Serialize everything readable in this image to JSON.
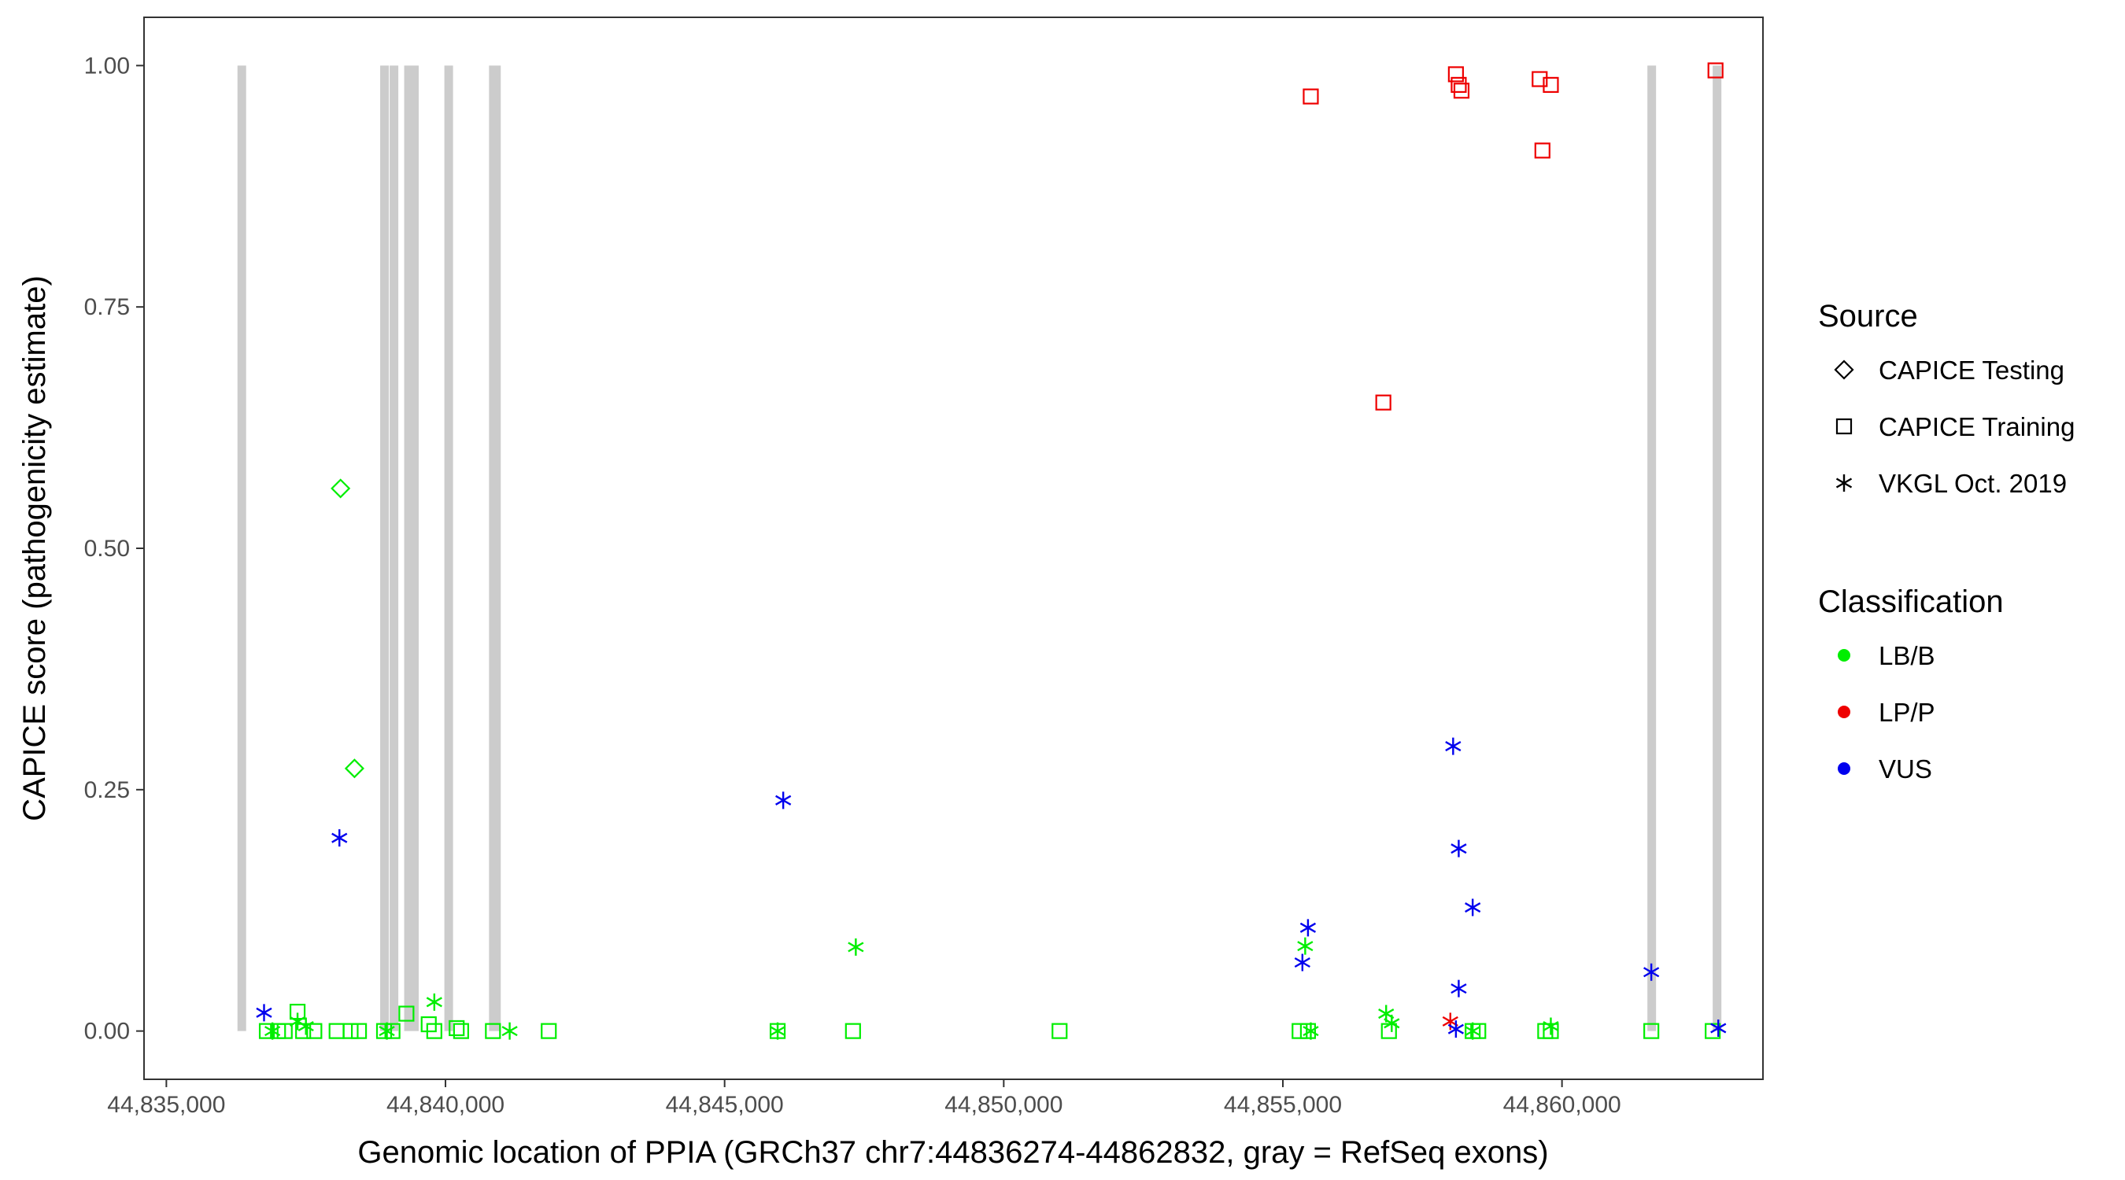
{
  "chart_data": {
    "type": "scatter",
    "title": "",
    "xlabel": "Genomic location of PPIA (GRCh37 chr7:44836274-44862832, gray = RefSeq exons)",
    "ylabel": "CAPICE score (pathogenicity estimate)",
    "xlim": [
      44834600,
      44863600
    ],
    "ylim": [
      -0.05,
      1.05
    ],
    "x_ticks": [
      44835000,
      44840000,
      44845000,
      44850000,
      44855000,
      44860000
    ],
    "x_tick_labels": [
      "44,835,000",
      "44,840,000",
      "44,845,000",
      "44,850,000",
      "44,855,000",
      "44,860,000"
    ],
    "y_ticks": [
      0,
      0.25,
      0.5,
      0.75,
      1.0
    ],
    "y_tick_labels": [
      "0.00",
      "0.25",
      "0.50",
      "0.75",
      "1.00"
    ],
    "grid": false,
    "exons": [
      [
        44836274,
        44836420
      ],
      [
        44838830,
        44838960
      ],
      [
        44839000,
        44839100
      ],
      [
        44839260,
        44839520
      ],
      [
        44839980,
        44840070
      ],
      [
        44840780,
        44840990
      ],
      [
        44861530,
        44861650
      ],
      [
        44862700,
        44862832
      ]
    ],
    "colors": {
      "LB/B": "#00ee00",
      "LP/P": "#ee0000",
      "VUS": "#0000ee",
      "exon": "#cccccc"
    },
    "legend": {
      "position": "right",
      "source_title": "Source",
      "source_items": [
        {
          "label": "CAPICE Testing",
          "shape": "diamond"
        },
        {
          "label": "CAPICE Training",
          "shape": "square"
        },
        {
          "label": "VKGL Oct. 2019",
          "shape": "asterisk"
        }
      ],
      "classification_title": "Classification",
      "classification_items": [
        {
          "label": "LB/B",
          "color": "#00ee00"
        },
        {
          "label": "LP/P",
          "color": "#ee0000"
        },
        {
          "label": "VUS",
          "color": "#0000ee"
        }
      ]
    },
    "series": [
      {
        "source": "CAPICE Testing",
        "classification": "LB/B",
        "points": [
          [
            44838120,
            0.562
          ],
          [
            44838370,
            0.272
          ]
        ]
      },
      {
        "source": "CAPICE Training",
        "classification": "LB/B",
        "points": [
          [
            44836800,
            0
          ],
          [
            44837000,
            0
          ],
          [
            44837120,
            0
          ],
          [
            44837350,
            0.02
          ],
          [
            44837450,
            0
          ],
          [
            44837650,
            0
          ],
          [
            44838050,
            0
          ],
          [
            44838300,
            0
          ],
          [
            44838450,
            0
          ],
          [
            44838900,
            0
          ],
          [
            44839050,
            0
          ],
          [
            44839300,
            0.018
          ],
          [
            44839700,
            0.007
          ],
          [
            44839800,
            0
          ],
          [
            44840200,
            0.003
          ],
          [
            44840280,
            0
          ],
          [
            44840850,
            0
          ],
          [
            44841850,
            0
          ],
          [
            44845950,
            0
          ],
          [
            44847300,
            0
          ],
          [
            44851000,
            0
          ],
          [
            44855300,
            0
          ],
          [
            44855450,
            0
          ],
          [
            44856900,
            0
          ],
          [
            44858400,
            0
          ],
          [
            44858500,
            0
          ],
          [
            44859700,
            0
          ],
          [
            44859800,
            0
          ],
          [
            44861600,
            0
          ],
          [
            44862700,
            0
          ]
        ]
      },
      {
        "source": "VKGL Oct. 2019",
        "classification": "LB/B",
        "points": [
          [
            44836900,
            0
          ],
          [
            44837350,
            0.01
          ],
          [
            44837500,
            0.005
          ],
          [
            44838950,
            0
          ],
          [
            44839800,
            0.03
          ],
          [
            44841150,
            0
          ],
          [
            44845950,
            0
          ],
          [
            44847350,
            0.087
          ],
          [
            44855400,
            0.088
          ],
          [
            44855500,
            0
          ],
          [
            44856850,
            0.018
          ],
          [
            44856950,
            0.008
          ],
          [
            44858400,
            0
          ],
          [
            44859800,
            0.005
          ]
        ]
      },
      {
        "source": "CAPICE Training",
        "classification": "LP/P",
        "points": [
          [
            44855500,
            0.968
          ],
          [
            44856800,
            0.651
          ],
          [
            44858100,
            0.991
          ],
          [
            44858150,
            0.98
          ],
          [
            44858200,
            0.974
          ],
          [
            44859600,
            0.986
          ],
          [
            44859800,
            0.98
          ],
          [
            44859650,
            0.912
          ],
          [
            44862750,
            0.995
          ]
        ]
      },
      {
        "source": "VKGL Oct. 2019",
        "classification": "LP/P",
        "points": [
          [
            44858000,
            0.01
          ]
        ]
      },
      {
        "source": "VKGL Oct. 2019",
        "classification": "VUS",
        "points": [
          [
            44836750,
            0.019
          ],
          [
            44838100,
            0.2
          ],
          [
            44846050,
            0.239
          ],
          [
            44855350,
            0.071
          ],
          [
            44855450,
            0.107
          ],
          [
            44858050,
            0.295
          ],
          [
            44858150,
            0.189
          ],
          [
            44858150,
            0.044
          ],
          [
            44858100,
            0.002
          ],
          [
            44858400,
            0.128
          ],
          [
            44861600,
            0.061
          ],
          [
            44862800,
            0.003
          ]
        ]
      }
    ]
  }
}
